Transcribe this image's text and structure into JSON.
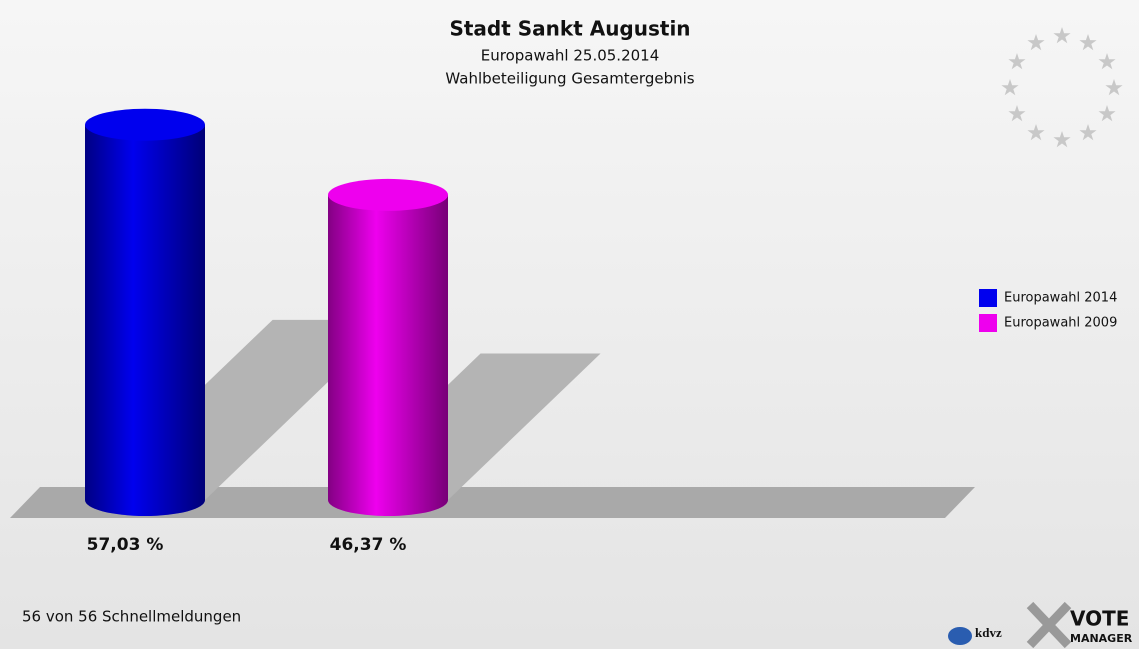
{
  "chart_data": {
    "type": "bar",
    "title": "Stadt Sankt Augustin",
    "subtitle": [
      "Europawahl 25.05.2014",
      "Wahlbeteiligung Gesamtergebnis"
    ],
    "categories": [
      null
    ],
    "series": [
      {
        "name": "Europawahl 2014",
        "color": "#0000ee",
        "values": [
          57.03
        ],
        "value_labels": [
          "57,03 %"
        ]
      },
      {
        "name": "Europawahl 2009",
        "color": "#ee00ee",
        "values": [
          46.37
        ],
        "value_labels": [
          "46,37 %"
        ]
      }
    ],
    "legend": "right",
    "footer": "56 von 56 Schnellmeldungen",
    "logos": [
      "kdvz",
      "VOTE",
      "MANAGER"
    ]
  }
}
